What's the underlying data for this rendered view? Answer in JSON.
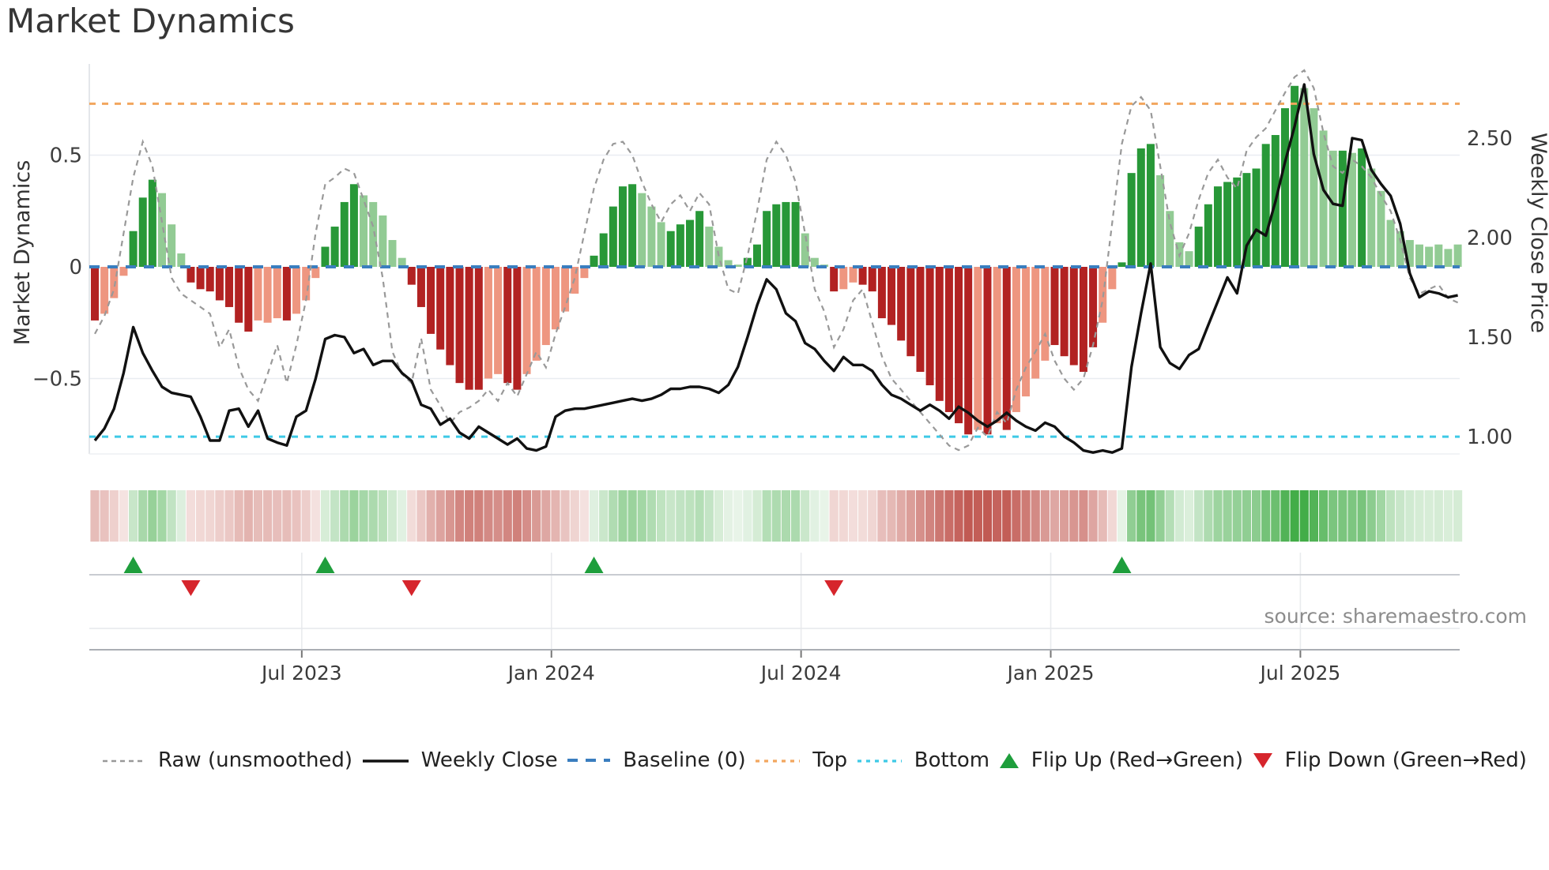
{
  "title": "Market Dynamics",
  "source_note": "source: sharemaestro.com",
  "axes": {
    "left_title": "Market Dynamics",
    "right_title": "Weekly Close Price",
    "left_ticks": [
      {
        "label": "0.5",
        "value": 0.5
      },
      {
        "label": "0",
        "value": 0
      },
      {
        "label": "−0.5",
        "value": -0.5
      }
    ],
    "right_ticks": [
      {
        "label": "2.50",
        "value": 2.5
      },
      {
        "label": "2.00",
        "value": 2.0
      },
      {
        "label": "1.50",
        "value": 1.5
      },
      {
        "label": "1.00",
        "value": 1.0
      }
    ],
    "x_ticks": [
      {
        "label": "Jul 2023",
        "week": 21.56
      },
      {
        "label": "Jan 2024",
        "week": 47.57
      },
      {
        "label": "Jul 2024",
        "week": 73.58
      },
      {
        "label": "Jan 2025",
        "week": 99.59
      },
      {
        "label": "Jul 2025",
        "week": 125.6
      }
    ],
    "left_range": [
      -0.84,
      0.91
    ],
    "right_range": [
      0.91,
      2.87
    ]
  },
  "colors": {
    "bar_green_strong": "#289838",
    "bar_green_light": "#92cb94",
    "bar_red_strong": "#b22222",
    "bar_red_light": "#ee9680",
    "baseline_blue": "#3a7ebf",
    "top_orange": "#f2a65e",
    "bottom_cyan": "#3ec9e6",
    "raw_gray": "#999999",
    "close_black": "#111111",
    "flip_up_green": "#1e9e3c",
    "flip_down_red": "#d6252c",
    "heat_green_strong": "#43ad48",
    "heat_green_weak": "#eaf5ea",
    "heat_red_strong": "#bf544d",
    "heat_red_weak": "#f8ebe9"
  },
  "reference_lines": {
    "baseline": {
      "label": "Baseline (0)",
      "value": 0
    },
    "top": {
      "label": "Top",
      "value": 0.73
    },
    "bottom": {
      "label": "Bottom",
      "value": -0.76
    }
  },
  "legend": {
    "items": [
      {
        "label": "Raw (unsmoothed)",
        "kind": "dashed-gray-line"
      },
      {
        "label": "Weekly Close",
        "kind": "solid-black-line"
      },
      {
        "label": "Baseline (0)",
        "kind": "dashed-blue-line"
      },
      {
        "label": "Top",
        "kind": "dashed-orange-line"
      },
      {
        "label": "Bottom",
        "kind": "dashed-cyan-line"
      },
      {
        "label": "Flip Up (Red→Green)",
        "kind": "green-up-triangle"
      },
      {
        "label": "Flip Down (Green→Red)",
        "kind": "red-down-triangle"
      }
    ]
  },
  "chart_data": {
    "type": "combo",
    "frequency": "weekly",
    "start_date": "2023-01-29",
    "n_points": 143,
    "title": "Market Dynamics",
    "grid": "horizontal-light",
    "series": [
      {
        "name": "Market Dynamics (smoothed oscillator)",
        "type": "bar",
        "axis": "left",
        "values": [
          -0.24,
          -0.21,
          -0.14,
          -0.04,
          0.16,
          0.31,
          0.39,
          0.33,
          0.19,
          0.06,
          -0.07,
          -0.1,
          -0.11,
          -0.15,
          -0.18,
          -0.25,
          -0.29,
          -0.24,
          -0.25,
          -0.23,
          -0.24,
          -0.21,
          -0.15,
          -0.05,
          0.09,
          0.18,
          0.29,
          0.37,
          0.32,
          0.29,
          0.23,
          0.12,
          0.04,
          -0.08,
          -0.18,
          -0.3,
          -0.37,
          -0.44,
          -0.52,
          -0.55,
          -0.55,
          -0.5,
          -0.48,
          -0.52,
          -0.55,
          -0.48,
          -0.42,
          -0.35,
          -0.28,
          -0.2,
          -0.12,
          -0.05,
          0.05,
          0.15,
          0.27,
          0.36,
          0.37,
          0.33,
          0.27,
          0.2,
          0.16,
          0.19,
          0.21,
          0.25,
          0.18,
          0.09,
          0.03,
          0.01,
          0.04,
          0.1,
          0.25,
          0.28,
          0.29,
          0.29,
          0.15,
          0.04,
          0.01,
          -0.11,
          -0.1,
          -0.07,
          -0.08,
          -0.11,
          -0.23,
          -0.26,
          -0.33,
          -0.4,
          -0.47,
          -0.53,
          -0.6,
          -0.65,
          -0.7,
          -0.75,
          -0.73,
          -0.75,
          -0.7,
          -0.73,
          -0.65,
          -0.58,
          -0.5,
          -0.42,
          -0.35,
          -0.4,
          -0.44,
          -0.47,
          -0.36,
          -0.25,
          -0.1,
          0.02,
          0.42,
          0.53,
          0.55,
          0.41,
          0.25,
          0.11,
          0.07,
          0.18,
          0.28,
          0.36,
          0.38,
          0.4,
          0.42,
          0.44,
          0.55,
          0.59,
          0.71,
          0.81,
          0.8,
          0.71,
          0.61,
          0.52,
          0.52,
          0.51,
          0.53,
          0.44,
          0.34,
          0.21,
          0.16,
          0.12,
          0.1,
          0.09,
          0.1,
          0.08,
          0.1
        ],
        "shade": "dllldddllldddddddllldlllddddlllllddddddddllddllllllldddddlllddddllllddddddllldllddddddddddddldldlllldddddllddddlllldddddddddddlllldldllllllllll",
        "shade_legend": {
          "d": "strong color",
          "l": "faded color"
        }
      },
      {
        "name": "Raw (unsmoothed)",
        "type": "line",
        "style": "dashed",
        "axis": "left",
        "values": [
          -0.3,
          -0.22,
          -0.1,
          0.15,
          0.4,
          0.56,
          0.45,
          0.2,
          -0.05,
          -0.12,
          -0.15,
          -0.18,
          -0.21,
          -0.36,
          -0.28,
          -0.45,
          -0.55,
          -0.6,
          -0.48,
          -0.35,
          -0.52,
          -0.35,
          -0.15,
          0.15,
          0.37,
          0.4,
          0.44,
          0.42,
          0.3,
          0.18,
          -0.05,
          -0.38,
          -0.48,
          -0.52,
          -0.32,
          -0.55,
          -0.62,
          -0.7,
          -0.65,
          -0.63,
          -0.6,
          -0.55,
          -0.6,
          -0.52,
          -0.58,
          -0.48,
          -0.38,
          -0.45,
          -0.3,
          -0.18,
          -0.05,
          0.15,
          0.35,
          0.48,
          0.55,
          0.56,
          0.5,
          0.38,
          0.28,
          0.2,
          0.28,
          0.32,
          0.25,
          0.33,
          0.28,
          0.05,
          -0.1,
          -0.12,
          0.05,
          0.25,
          0.48,
          0.56,
          0.5,
          0.38,
          0.15,
          -0.1,
          -0.2,
          -0.36,
          -0.28,
          -0.15,
          -0.1,
          -0.25,
          -0.4,
          -0.5,
          -0.55,
          -0.6,
          -0.65,
          -0.7,
          -0.75,
          -0.8,
          -0.82,
          -0.8,
          -0.72,
          -0.76,
          -0.65,
          -0.7,
          -0.55,
          -0.45,
          -0.38,
          -0.3,
          -0.42,
          -0.5,
          -0.55,
          -0.5,
          -0.35,
          -0.15,
          0.2,
          0.55,
          0.72,
          0.76,
          0.7,
          0.45,
          0.2,
          0.05,
          0.15,
          0.3,
          0.42,
          0.48,
          0.4,
          0.35,
          0.52,
          0.58,
          0.62,
          0.7,
          0.78,
          0.85,
          0.88,
          0.8,
          0.6,
          0.45,
          0.42,
          0.48,
          0.45,
          0.4,
          0.32,
          0.25,
          0.12,
          -0.05,
          -0.12,
          -0.1,
          -0.08,
          -0.14,
          -0.16
        ]
      },
      {
        "name": "Weekly Close",
        "type": "line",
        "style": "solid",
        "axis": "right",
        "values": [
          0.98,
          1.04,
          1.14,
          1.32,
          1.55,
          1.42,
          1.33,
          1.25,
          1.22,
          1.21,
          1.2,
          1.1,
          0.98,
          0.98,
          1.13,
          1.14,
          1.05,
          1.13,
          0.99,
          0.97,
          0.955,
          1.1,
          1.13,
          1.29,
          1.49,
          1.51,
          1.5,
          1.42,
          1.44,
          1.36,
          1.38,
          1.38,
          1.32,
          1.28,
          1.16,
          1.14,
          1.06,
          1.09,
          1.02,
          0.99,
          1.05,
          1.02,
          0.99,
          0.96,
          0.99,
          0.94,
          0.93,
          0.95,
          1.1,
          1.13,
          1.14,
          1.14,
          1.15,
          1.16,
          1.17,
          1.18,
          1.19,
          1.18,
          1.19,
          1.21,
          1.24,
          1.24,
          1.25,
          1.25,
          1.24,
          1.22,
          1.26,
          1.35,
          1.5,
          1.66,
          1.79,
          1.74,
          1.62,
          1.58,
          1.47,
          1.44,
          1.38,
          1.33,
          1.4,
          1.36,
          1.36,
          1.33,
          1.26,
          1.21,
          1.19,
          1.16,
          1.13,
          1.16,
          1.13,
          1.09,
          1.15,
          1.12,
          1.08,
          1.05,
          1.08,
          1.12,
          1.08,
          1.05,
          1.03,
          1.07,
          1.05,
          1.0,
          0.97,
          0.93,
          0.92,
          0.93,
          0.92,
          0.94,
          1.35,
          1.62,
          1.87,
          1.45,
          1.37,
          1.34,
          1.41,
          1.44,
          1.56,
          1.68,
          1.8,
          1.72,
          1.96,
          2.04,
          2.01,
          2.18,
          2.38,
          2.56,
          2.77,
          2.42,
          2.24,
          2.17,
          2.16,
          2.5,
          2.49,
          2.34,
          2.27,
          2.21,
          2.07,
          1.82,
          1.7,
          1.73,
          1.72,
          1.7,
          1.71
        ]
      }
    ],
    "heatmap": {
      "position": "strip below main chart",
      "source": "bar-series values mapped to red/green intensity"
    },
    "markers": {
      "flip_up_weeks": [
        4,
        24,
        52,
        107
      ],
      "flip_down_weeks": [
        10,
        33,
        77
      ]
    }
  }
}
